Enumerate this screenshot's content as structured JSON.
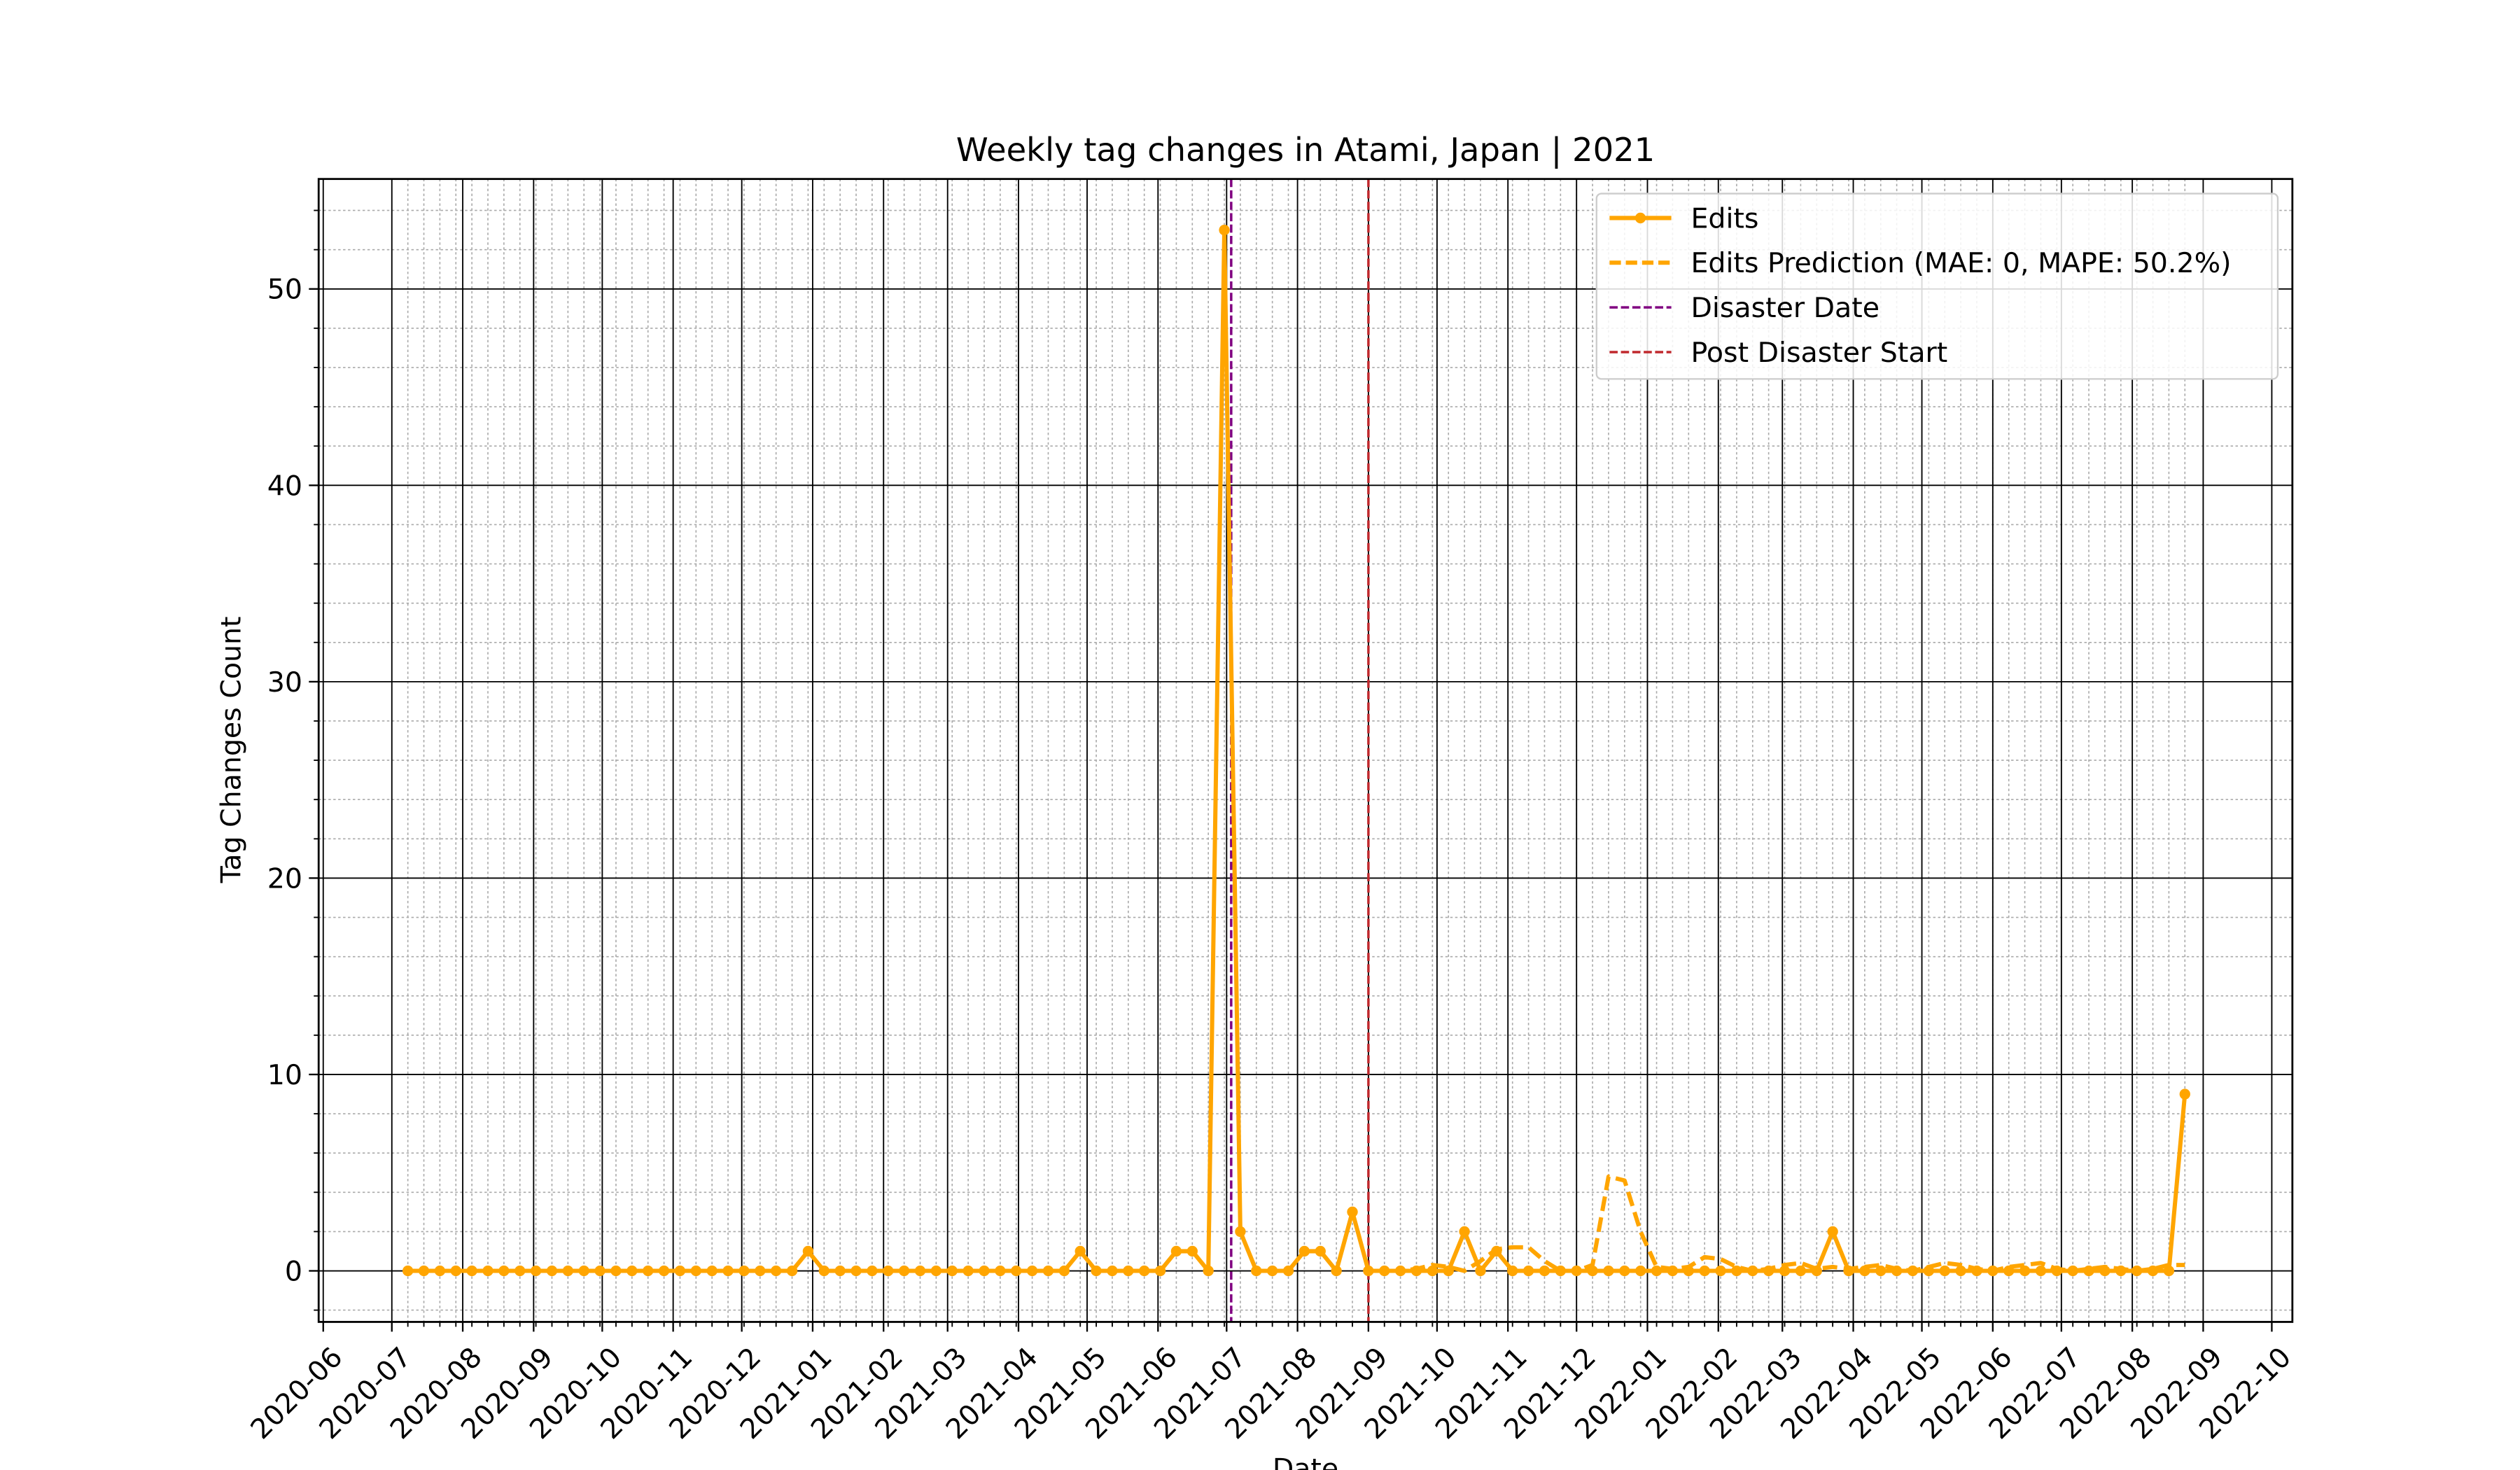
{
  "chart_data": {
    "type": "line",
    "title": "Weekly tag changes in Atami, Japan | 2021",
    "xlabel": "Date",
    "ylabel": "Tag Changes Count",
    "x": [
      "2020-07-08",
      "2020-07-15",
      "2020-07-22",
      "2020-07-29",
      "2020-08-05",
      "2020-08-12",
      "2020-08-19",
      "2020-08-26",
      "2020-09-02",
      "2020-09-09",
      "2020-09-16",
      "2020-09-23",
      "2020-09-30",
      "2020-10-07",
      "2020-10-14",
      "2020-10-21",
      "2020-10-28",
      "2020-11-04",
      "2020-11-11",
      "2020-11-18",
      "2020-11-25",
      "2020-12-02",
      "2020-12-09",
      "2020-12-16",
      "2020-12-23",
      "2020-12-30",
      "2021-01-06",
      "2021-01-13",
      "2021-01-20",
      "2021-01-27",
      "2021-02-03",
      "2021-02-10",
      "2021-02-17",
      "2021-02-24",
      "2021-03-03",
      "2021-03-10",
      "2021-03-17",
      "2021-03-24",
      "2021-03-31",
      "2021-04-07",
      "2021-04-14",
      "2021-04-21",
      "2021-04-28",
      "2021-05-05",
      "2021-05-12",
      "2021-05-19",
      "2021-05-26",
      "2021-06-02",
      "2021-06-09",
      "2021-06-16",
      "2021-06-23",
      "2021-06-30",
      "2021-07-07",
      "2021-07-14",
      "2021-07-21",
      "2021-07-28",
      "2021-08-04",
      "2021-08-11",
      "2021-08-18",
      "2021-08-25",
      "2021-09-01",
      "2021-09-08",
      "2021-09-15",
      "2021-09-22",
      "2021-09-29",
      "2021-10-06",
      "2021-10-13",
      "2021-10-20",
      "2021-10-27",
      "2021-11-03",
      "2021-11-10",
      "2021-11-17",
      "2021-11-24",
      "2021-12-01",
      "2021-12-08",
      "2021-12-15",
      "2021-12-22",
      "2021-12-29",
      "2022-01-05",
      "2022-01-12",
      "2022-01-19",
      "2022-01-26",
      "2022-02-02",
      "2022-02-09",
      "2022-02-16",
      "2022-02-23",
      "2022-03-02",
      "2022-03-09",
      "2022-03-16",
      "2022-03-23",
      "2022-03-30",
      "2022-04-06",
      "2022-04-13",
      "2022-04-20",
      "2022-04-27",
      "2022-05-04",
      "2022-05-11",
      "2022-05-18",
      "2022-05-25",
      "2022-06-01",
      "2022-06-08",
      "2022-06-15",
      "2022-06-22",
      "2022-06-29",
      "2022-07-06",
      "2022-07-13",
      "2022-07-20",
      "2022-07-27",
      "2022-08-03",
      "2022-08-10",
      "2022-08-17",
      "2022-08-24"
    ],
    "series": [
      {
        "name": "Edits",
        "color": "#ffa500",
        "style": "solid",
        "marker": true,
        "values": [
          0,
          0,
          0,
          0,
          0,
          0,
          0,
          0,
          0,
          0,
          0,
          0,
          0,
          0,
          0,
          0,
          0,
          0,
          0,
          0,
          0,
          0,
          0,
          0,
          0,
          1,
          0,
          0,
          0,
          0,
          0,
          0,
          0,
          0,
          0,
          0,
          0,
          0,
          0,
          0,
          0,
          0,
          1,
          0,
          0,
          0,
          0,
          0,
          1,
          1,
          0,
          53,
          2,
          0,
          0,
          0,
          1,
          1,
          0,
          3,
          0,
          0,
          0,
          0,
          0,
          0,
          2,
          0,
          1,
          0,
          0,
          0,
          0,
          0,
          0,
          0,
          0,
          0,
          0,
          0,
          0,
          0,
          0,
          0,
          0,
          0,
          0,
          0,
          0,
          2,
          0,
          0,
          0,
          0,
          0,
          0,
          0,
          0,
          0,
          0,
          0,
          0,
          0,
          0,
          0,
          0,
          0,
          0,
          0,
          0,
          0,
          9
        ]
      },
      {
        "name": "Edits Prediction (MAE: 0, MAPE: 50.2%)",
        "color": "#ffa500",
        "style": "dashed",
        "marker": false,
        "values": [
          null,
          null,
          null,
          null,
          null,
          null,
          null,
          null,
          null,
          null,
          null,
          null,
          null,
          null,
          null,
          null,
          null,
          null,
          null,
          null,
          null,
          null,
          null,
          null,
          null,
          null,
          null,
          null,
          null,
          null,
          null,
          null,
          null,
          null,
          null,
          null,
          null,
          null,
          null,
          null,
          null,
          null,
          null,
          null,
          null,
          null,
          null,
          null,
          null,
          null,
          null,
          null,
          null,
          null,
          null,
          null,
          null,
          null,
          null,
          null,
          0,
          0,
          0,
          0.1,
          0.3,
          0.2,
          0,
          0.5,
          1.1,
          1.2,
          1.2,
          0.5,
          0,
          0,
          0.3,
          4.8,
          4.6,
          2,
          0.2,
          0.1,
          0.2,
          0.7,
          0.6,
          0.2,
          0,
          0.1,
          0.3,
          0.4,
          0.1,
          0.2,
          0.1,
          0.2,
          0.3,
          0.1,
          0,
          0.2,
          0.4,
          0.3,
          0.1,
          0,
          0.2,
          0.3,
          0.4,
          0.1,
          0,
          0.1,
          0.2,
          0.1,
          0,
          0.1,
          0.3,
          0.3
        ]
      }
    ],
    "vlines": [
      {
        "name": "Disaster Date",
        "x": "2021-07-03",
        "color": "#800080"
      },
      {
        "name": "Post Disaster Start",
        "x": "2021-09-01",
        "color": "#c0282d"
      }
    ],
    "xlim": [
      "2020-05-30",
      "2022-10-10"
    ],
    "xticks": [
      {
        "value": "2020-06-01",
        "label": "2020-06"
      },
      {
        "value": "2020-07-01",
        "label": "2020-07"
      },
      {
        "value": "2020-08-01",
        "label": "2020-08"
      },
      {
        "value": "2020-09-01",
        "label": "2020-09"
      },
      {
        "value": "2020-10-01",
        "label": "2020-10"
      },
      {
        "value": "2020-11-01",
        "label": "2020-11"
      },
      {
        "value": "2020-12-01",
        "label": "2020-12"
      },
      {
        "value": "2021-01-01",
        "label": "2021-01"
      },
      {
        "value": "2021-02-01",
        "label": "2021-02"
      },
      {
        "value": "2021-03-01",
        "label": "2021-03"
      },
      {
        "value": "2021-04-01",
        "label": "2021-04"
      },
      {
        "value": "2021-05-01",
        "label": "2021-05"
      },
      {
        "value": "2021-06-01",
        "label": "2021-06"
      },
      {
        "value": "2021-07-01",
        "label": "2021-07"
      },
      {
        "value": "2021-08-01",
        "label": "2021-08"
      },
      {
        "value": "2021-09-01",
        "label": "2021-09"
      },
      {
        "value": "2021-10-01",
        "label": "2021-10"
      },
      {
        "value": "2021-11-01",
        "label": "2021-11"
      },
      {
        "value": "2021-12-01",
        "label": "2021-12"
      },
      {
        "value": "2022-01-01",
        "label": "2022-01"
      },
      {
        "value": "2022-02-01",
        "label": "2022-02"
      },
      {
        "value": "2022-03-01",
        "label": "2022-03"
      },
      {
        "value": "2022-04-01",
        "label": "2022-04"
      },
      {
        "value": "2022-05-01",
        "label": "2022-05"
      },
      {
        "value": "2022-06-01",
        "label": "2022-06"
      },
      {
        "value": "2022-07-01",
        "label": "2022-07"
      },
      {
        "value": "2022-08-01",
        "label": "2022-08"
      },
      {
        "value": "2022-09-01",
        "label": "2022-09"
      },
      {
        "value": "2022-10-01",
        "label": "2022-10"
      }
    ],
    "ylim": [
      -2.6,
      55.6
    ],
    "yticks": [
      0,
      10,
      20,
      30,
      40,
      50
    ],
    "grid": true,
    "minor_grid": true,
    "legend": "upper right"
  }
}
